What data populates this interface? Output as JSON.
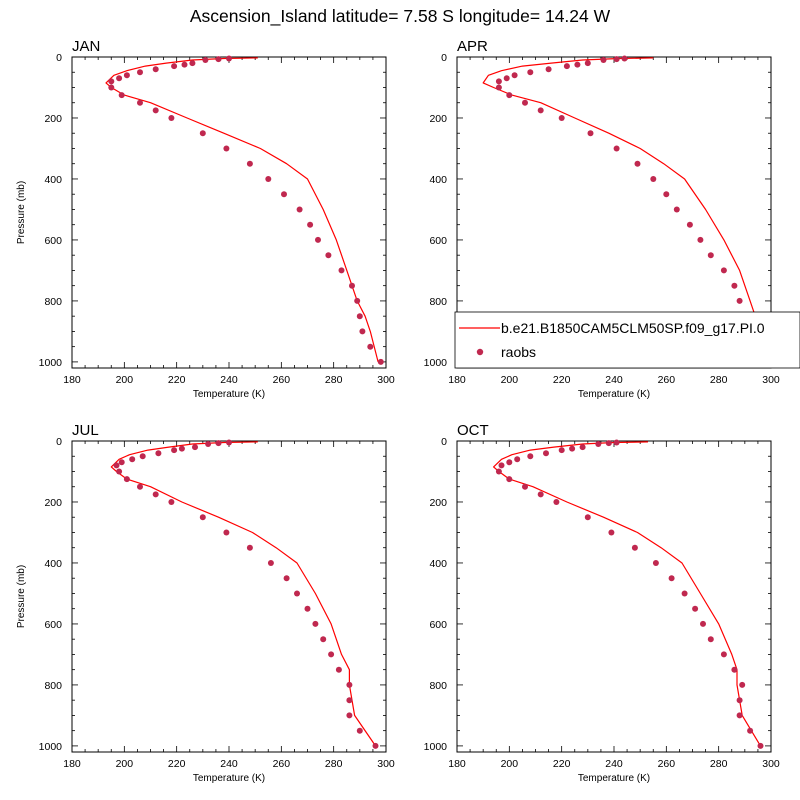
{
  "figure": {
    "title": "Ascension_Island  latitude= 7.58 S longitude= 14.24 W"
  },
  "legend": {
    "model_label": "b.e21.B1850CAM5CLM50SP.f09_g17.PI.0",
    "obs_label": "raobs",
    "model_color": "#ff0000",
    "obs_color": "#c0284f"
  },
  "chart_data": [
    {
      "type": "line",
      "panel": "JAN",
      "title": "JAN",
      "xlabel": "Temperature (K)",
      "ylabel": "Pressure (mb)",
      "xlim": [
        180,
        300
      ],
      "ylim": [
        1020,
        0
      ],
      "y_inverted": true,
      "xticks": [
        180,
        200,
        220,
        240,
        260,
        280,
        300
      ],
      "yticks": [
        0,
        200,
        400,
        600,
        800,
        1000
      ],
      "model": {
        "name": "b.e21.B1850CAM5CLM50SP.f09_g17.PI.0",
        "x": [
          251,
          238,
          226,
          216,
          208,
          201,
          196,
          193,
          195,
          200,
          210,
          224,
          238,
          252,
          262,
          270,
          276,
          281,
          285,
          289,
          292,
          294,
          297
        ],
        "y": [
          3,
          5,
          10,
          20,
          30,
          45,
          60,
          85,
          100,
          125,
          150,
          200,
          250,
          300,
          350,
          400,
          500,
          600,
          700,
          800,
          850,
          900,
          1000
        ]
      },
      "obs": {
        "name": "raobs",
        "x": [
          240,
          236,
          231,
          226,
          223,
          219,
          212,
          206,
          201,
          198,
          195,
          195,
          199,
          206,
          212,
          218,
          230,
          239,
          248,
          255,
          261,
          267,
          271,
          274,
          278,
          283,
          287,
          289,
          290,
          291,
          294,
          298
        ],
        "y": [
          5,
          7,
          10,
          20,
          25,
          30,
          40,
          50,
          60,
          70,
          80,
          100,
          125,
          150,
          175,
          200,
          250,
          300,
          350,
          400,
          450,
          500,
          550,
          600,
          650,
          700,
          750,
          800,
          850,
          900,
          950,
          1000
        ]
      }
    },
    {
      "type": "line",
      "panel": "APR",
      "title": "APR",
      "xlabel": "Temperature (K)",
      "ylabel": "",
      "xlim": [
        180,
        300
      ],
      "ylim": [
        1020,
        0
      ],
      "y_inverted": true,
      "xticks": [
        180,
        200,
        220,
        240,
        260,
        280,
        300
      ],
      "yticks": [
        0,
        200,
        400,
        600,
        800,
        1000
      ],
      "model": {
        "name": "b.e21.B1850CAM5CLM50SP.f09_g17.PI.0",
        "x": [
          255,
          242,
          228,
          216,
          205,
          197,
          192,
          190,
          194,
          201,
          212,
          225,
          238,
          250,
          259,
          267,
          275,
          282,
          288,
          292,
          294,
          296,
          299
        ],
        "y": [
          3,
          5,
          10,
          20,
          30,
          45,
          60,
          85,
          100,
          125,
          150,
          200,
          250,
          300,
          350,
          400,
          500,
          600,
          700,
          800,
          850,
          900,
          1000
        ]
      },
      "obs": {
        "name": "raobs",
        "x": [
          244,
          241,
          236,
          230,
          226,
          222,
          215,
          208,
          202,
          199,
          196,
          196,
          200,
          206,
          212,
          220,
          231,
          241,
          249,
          255,
          260,
          264,
          269,
          273,
          277,
          282,
          286,
          288,
          290,
          291,
          294,
          298
        ],
        "y": [
          5,
          7,
          10,
          20,
          25,
          30,
          40,
          50,
          60,
          70,
          80,
          100,
          125,
          150,
          175,
          200,
          250,
          300,
          350,
          400,
          450,
          500,
          550,
          600,
          650,
          700,
          750,
          800,
          850,
          900,
          950,
          1000
        ]
      }
    },
    {
      "type": "line",
      "panel": "JUL",
      "title": "JUL",
      "xlabel": "Temperature (K)",
      "ylabel": "Pressure (mb)",
      "xlim": [
        180,
        300
      ],
      "ylim": [
        1020,
        0
      ],
      "y_inverted": true,
      "xticks": [
        180,
        200,
        220,
        240,
        260,
        280,
        300
      ],
      "yticks": [
        0,
        200,
        400,
        600,
        800,
        1000
      ],
      "model": {
        "name": "b.e21.B1850CAM5CLM50SP.f09_g17.PI.0",
        "x": [
          251,
          238,
          226,
          217,
          209,
          202,
          198,
          195,
          197,
          201,
          210,
          222,
          236,
          249,
          258,
          266,
          273,
          279,
          283,
          286,
          286,
          288,
          296
        ],
        "y": [
          3,
          5,
          10,
          20,
          30,
          45,
          60,
          85,
          100,
          125,
          150,
          200,
          250,
          300,
          350,
          400,
          500,
          600,
          700,
          750,
          800,
          900,
          1000
        ]
      },
      "obs": {
        "name": "raobs",
        "x": [
          240,
          236,
          232,
          227,
          222,
          219,
          213,
          207,
          203,
          199,
          197,
          198,
          201,
          206,
          212,
          218,
          230,
          239,
          248,
          256,
          262,
          266,
          270,
          273,
          276,
          279,
          282,
          286,
          286,
          286,
          290,
          296
        ],
        "y": [
          5,
          7,
          10,
          20,
          25,
          30,
          40,
          50,
          60,
          70,
          80,
          100,
          125,
          150,
          175,
          200,
          250,
          300,
          350,
          400,
          450,
          500,
          550,
          600,
          650,
          700,
          750,
          800,
          850,
          900,
          950,
          1000
        ]
      }
    },
    {
      "type": "line",
      "panel": "OCT",
      "title": "OCT",
      "xlabel": "Temperature (K)",
      "ylabel": "",
      "xlim": [
        180,
        300
      ],
      "ylim": [
        1020,
        0
      ],
      "y_inverted": true,
      "xticks": [
        180,
        200,
        220,
        240,
        260,
        280,
        300
      ],
      "yticks": [
        0,
        200,
        400,
        600,
        800,
        1000
      ],
      "model": {
        "name": "b.e21.B1850CAM5CLM50SP.f09_g17.PI.0",
        "x": [
          253,
          240,
          228,
          217,
          208,
          201,
          197,
          194,
          196,
          200,
          209,
          222,
          236,
          249,
          258,
          266,
          273,
          280,
          285,
          287,
          287,
          289,
          296
        ],
        "y": [
          3,
          5,
          10,
          20,
          30,
          45,
          60,
          85,
          100,
          125,
          150,
          200,
          250,
          300,
          350,
          400,
          500,
          600,
          700,
          750,
          800,
          900,
          1000
        ]
      },
      "obs": {
        "name": "raobs",
        "x": [
          241,
          238,
          234,
          228,
          224,
          220,
          214,
          208,
          203,
          200,
          197,
          196,
          200,
          206,
          212,
          218,
          230,
          239,
          248,
          256,
          262,
          267,
          271,
          274,
          277,
          282,
          286,
          289,
          288,
          288,
          292,
          296
        ],
        "y": [
          5,
          7,
          10,
          20,
          25,
          30,
          40,
          50,
          60,
          70,
          80,
          100,
          125,
          150,
          175,
          200,
          250,
          300,
          350,
          400,
          450,
          500,
          550,
          600,
          650,
          700,
          750,
          800,
          850,
          900,
          950,
          1000
        ]
      }
    }
  ]
}
